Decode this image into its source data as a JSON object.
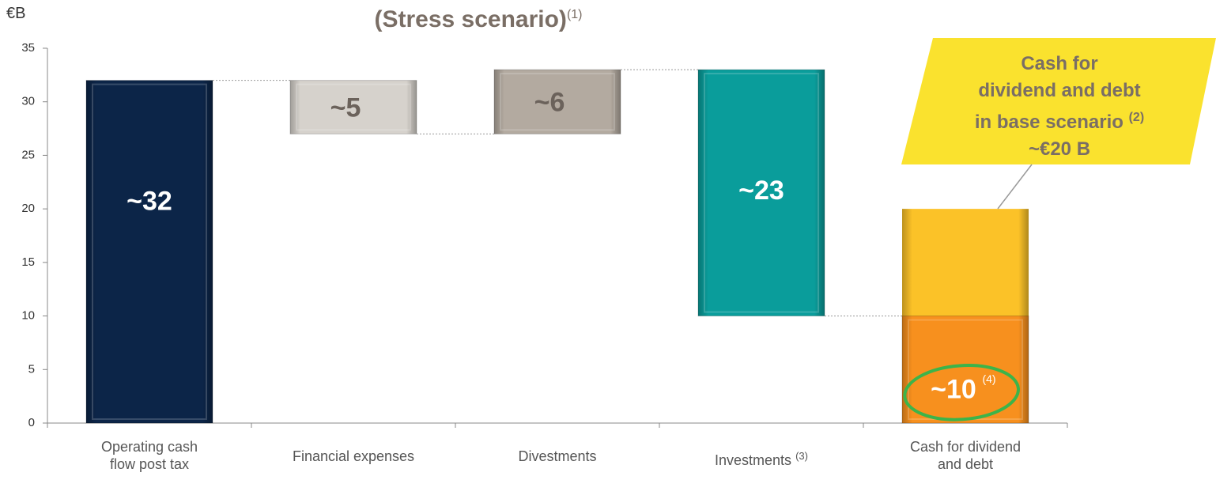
{
  "chart_data": {
    "type": "waterfall",
    "title": "(Stress scenario)",
    "title_note": "(1)",
    "y_label": "€B",
    "categories": [
      "Operating cash flow post tax",
      "Financial expenses",
      "Divestments",
      "Investments",
      "Cash for dividend and debt"
    ],
    "category_notes": {
      "3": "(3)"
    },
    "values": [
      32,
      -5,
      6,
      -23,
      10
    ],
    "value_labels": [
      "~32",
      "~5",
      "~6",
      "~23",
      "~10"
    ],
    "value_label_notes": {
      "4": "(4)"
    },
    "measure": [
      "absolute",
      "relative",
      "relative",
      "relative",
      "total"
    ],
    "colors": [
      "#0c2548",
      "#d6d2cc",
      "#b3aaa0",
      "#0a9d9b",
      "#f7901e"
    ],
    "label_colors": [
      "#ffffff",
      "#6b625b",
      "#6b625b",
      "#ffffff",
      "#ffffff"
    ],
    "base_scenario": {
      "value": 20,
      "color": "#fbc228",
      "lines": [
        "Cash for",
        "dividend and debt",
        "in base scenario"
      ],
      "note": "(2)",
      "value_label": "~€20 B",
      "callout_color": "#fae22e"
    },
    "ylim": [
      0,
      35
    ],
    "yticks": [
      0,
      5,
      10,
      15,
      20,
      25,
      30,
      35
    ]
  }
}
